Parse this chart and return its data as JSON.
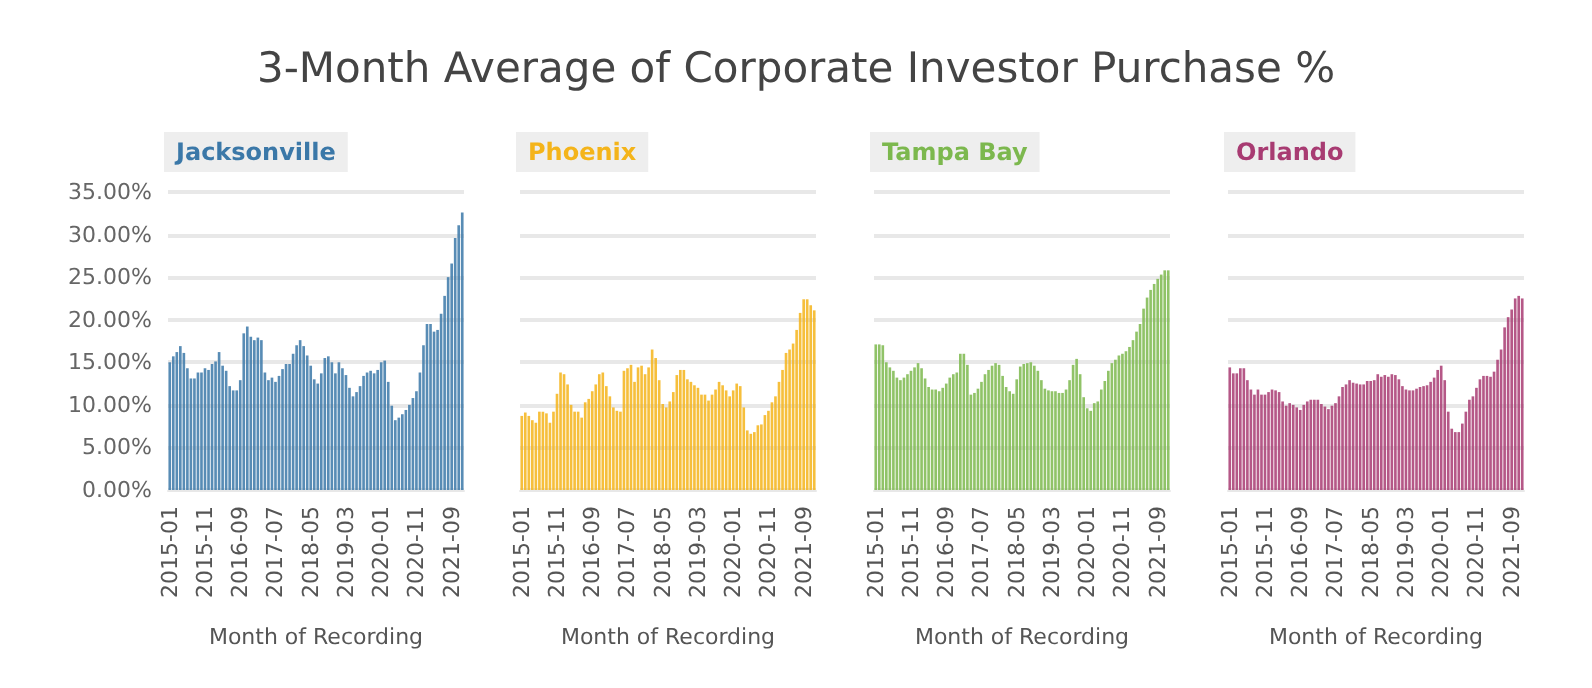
{
  "chart_data": [
    {
      "type": "bar",
      "title": "Jacksonville",
      "annotations": [
        "3-Month Average of Corporate Investor Purchase %"
      ],
      "xlabel": "Month of Recording",
      "categories": [
        "2015-01",
        null,
        null,
        null,
        null,
        null,
        null,
        null,
        null,
        null,
        "2015-11",
        null,
        null,
        null,
        null,
        null,
        null,
        null,
        null,
        null,
        "2016-09",
        null,
        null,
        null,
        null,
        null,
        null,
        null,
        null,
        null,
        "2017-07",
        null,
        null,
        null,
        null,
        null,
        null,
        null,
        null,
        null,
        "2018-05",
        null,
        null,
        null,
        null,
        null,
        null,
        null,
        null,
        null,
        "2019-03",
        null,
        null,
        null,
        null,
        null,
        null,
        null,
        null,
        null,
        "2020-01",
        null,
        null,
        null,
        null,
        null,
        null,
        null,
        null,
        null,
        "2020-11",
        null,
        null,
        null,
        null,
        null,
        null,
        null,
        null,
        null,
        "2021-09",
        null,
        null,
        null
      ],
      "series": [
        {
          "color": "#3b78a8",
          "values": [
            15.0,
            15.7,
            16.2,
            16.9,
            16.1,
            14.3,
            13.1,
            13.1,
            13.8,
            13.8,
            14.3,
            14.1,
            14.8,
            15.1,
            16.2,
            14.6,
            14.0,
            12.2,
            11.7,
            11.7,
            12.9,
            18.4,
            19.2,
            18.0,
            17.6,
            17.9,
            17.6,
            13.8,
            12.9,
            13.2,
            12.7,
            13.4,
            14.2,
            14.8,
            14.8,
            16.0,
            17.0,
            17.6,
            16.9,
            15.8,
            14.6,
            13.0,
            12.5,
            13.7,
            15.5,
            15.7,
            15.0,
            13.7,
            15.0,
            14.3,
            13.5,
            12.0,
            11.0,
            11.5,
            12.2,
            13.4,
            13.8,
            14.0,
            13.7,
            14.1,
            15.0,
            15.2,
            12.7,
            9.9,
            8.2,
            8.5,
            8.9,
            9.4,
            10.0,
            10.8,
            11.6,
            13.8,
            17.0,
            19.5,
            19.5,
            18.6,
            18.8,
            20.7,
            22.8,
            25.0,
            26.6,
            29.6,
            31.1,
            32.6
          ]
        }
      ],
      "ylim": [
        0,
        35
      ],
      "yticks": [
        {
          "value": 0,
          "label": "0.00%"
        },
        {
          "value": 5,
          "label": "5.00%"
        },
        {
          "value": 10,
          "label": "10.00%"
        },
        {
          "value": 15,
          "label": "15.00%"
        },
        {
          "value": 20,
          "label": "20.00%"
        },
        {
          "value": 25,
          "label": "25.00%"
        },
        {
          "value": 30,
          "label": "30.00%"
        },
        {
          "value": 35,
          "label": "35.00%"
        }
      ],
      "grid": "y"
    },
    {
      "type": "bar",
      "title": "Phoenix",
      "xlabel": "Month of Recording",
      "categories": [
        "2015-01",
        null,
        null,
        null,
        null,
        null,
        null,
        null,
        null,
        null,
        "2015-11",
        null,
        null,
        null,
        null,
        null,
        null,
        null,
        null,
        null,
        "2016-09",
        null,
        null,
        null,
        null,
        null,
        null,
        null,
        null,
        null,
        "2017-07",
        null,
        null,
        null,
        null,
        null,
        null,
        null,
        null,
        null,
        "2018-05",
        null,
        null,
        null,
        null,
        null,
        null,
        null,
        null,
        null,
        "2019-03",
        null,
        null,
        null,
        null,
        null,
        null,
        null,
        null,
        null,
        "2020-01",
        null,
        null,
        null,
        null,
        null,
        null,
        null,
        null,
        null,
        "2020-11",
        null,
        null,
        null,
        null,
        null,
        null,
        null,
        null,
        null,
        "2021-09",
        null,
        null,
        null
      ],
      "series": [
        {
          "color": "#f4b41a",
          "values": [
            8.7,
            9.1,
            8.7,
            8.2,
            7.9,
            9.2,
            9.2,
            9.0,
            7.9,
            9.2,
            11.3,
            13.8,
            13.6,
            12.4,
            10.0,
            9.2,
            9.2,
            8.5,
            10.3,
            10.7,
            11.6,
            12.4,
            13.6,
            13.8,
            12.2,
            11.0,
            9.7,
            9.3,
            9.2,
            14.0,
            14.3,
            14.7,
            12.7,
            14.4,
            14.6,
            13.6,
            14.4,
            16.5,
            15.5,
            12.9,
            10.1,
            9.7,
            10.4,
            11.5,
            13.5,
            14.1,
            14.1,
            13.0,
            12.7,
            12.3,
            12.0,
            11.2,
            11.2,
            10.5,
            11.2,
            11.8,
            12.7,
            12.3,
            11.7,
            11.0,
            11.7,
            12.5,
            12.2,
            9.7,
            7.0,
            6.6,
            6.8,
            7.6,
            7.7,
            8.8,
            9.3,
            10.3,
            11.0,
            12.7,
            14.1,
            16.1,
            16.5,
            17.2,
            18.8,
            20.8,
            22.4,
            22.4,
            21.7,
            21.1
          ]
        }
      ],
      "ylim": [
        0,
        35
      ],
      "yticks": [
        0,
        5,
        10,
        15,
        20,
        25,
        30,
        35
      ],
      "grid": "y",
      "tick_labels": "x"
    },
    {
      "type": "bar",
      "title": "Tampa Bay",
      "xlabel": "Month of Recording",
      "categories": [
        "2015-01",
        null,
        null,
        null,
        null,
        null,
        null,
        null,
        null,
        null,
        "2015-11",
        null,
        null,
        null,
        null,
        null,
        null,
        null,
        null,
        null,
        "2016-09",
        null,
        null,
        null,
        null,
        null,
        null,
        null,
        null,
        null,
        "2017-07",
        null,
        null,
        null,
        null,
        null,
        null,
        null,
        null,
        null,
        "2018-05",
        null,
        null,
        null,
        null,
        null,
        null,
        null,
        null,
        null,
        "2019-03",
        null,
        null,
        null,
        null,
        null,
        null,
        null,
        null,
        null,
        "2020-01",
        null,
        null,
        null,
        null,
        null,
        null,
        null,
        null,
        null,
        "2020-11",
        null,
        null,
        null,
        null,
        null,
        null,
        null,
        null,
        null,
        "2021-09",
        null,
        null,
        null
      ],
      "series": [
        {
          "color": "#7cb84e",
          "values": [
            17.1,
            17.1,
            17.0,
            15.0,
            14.4,
            14.0,
            13.2,
            12.9,
            13.2,
            13.6,
            14.0,
            14.4,
            14.9,
            14.3,
            13.1,
            12.1,
            11.8,
            11.8,
            11.6,
            12.0,
            12.5,
            13.2,
            13.6,
            13.8,
            16.0,
            16.0,
            14.7,
            11.2,
            11.4,
            11.9,
            12.7,
            13.6,
            14.1,
            14.6,
            14.9,
            14.7,
            13.4,
            12.1,
            11.6,
            11.3,
            13.0,
            14.5,
            14.8,
            14.9,
            15.0,
            14.6,
            14.0,
            12.9,
            11.9,
            11.7,
            11.6,
            11.6,
            11.4,
            11.4,
            11.8,
            12.9,
            14.7,
            15.4,
            13.6,
            10.9,
            9.6,
            9.3,
            10.2,
            10.4,
            11.8,
            12.8,
            14.0,
            14.9,
            15.3,
            15.8,
            16.0,
            16.3,
            16.8,
            17.6,
            18.6,
            19.5,
            21.3,
            22.6,
            23.5,
            24.2,
            24.8,
            25.3,
            25.8,
            25.8
          ]
        }
      ],
      "ylim": [
        0,
        35
      ],
      "yticks": [
        0,
        5,
        10,
        15,
        20,
        25,
        30,
        35
      ],
      "grid": "y",
      "tick_labels": "x"
    },
    {
      "type": "bar",
      "title": "Orlando",
      "xlabel": "Month of Recording",
      "categories": [
        "2015-01",
        null,
        null,
        null,
        null,
        null,
        null,
        null,
        null,
        null,
        "2015-11",
        null,
        null,
        null,
        null,
        null,
        null,
        null,
        null,
        null,
        "2016-09",
        null,
        null,
        null,
        null,
        null,
        null,
        null,
        null,
        null,
        "2017-07",
        null,
        null,
        null,
        null,
        null,
        null,
        null,
        null,
        null,
        "2018-05",
        null,
        null,
        null,
        null,
        null,
        null,
        null,
        null,
        null,
        "2019-03",
        null,
        null,
        null,
        null,
        null,
        null,
        null,
        null,
        null,
        "2020-01",
        null,
        null,
        null,
        null,
        null,
        null,
        null,
        null,
        null,
        "2020-11",
        null,
        null,
        null,
        null,
        null,
        null,
        null,
        null,
        null,
        "2021-09",
        null,
        null,
        null
      ],
      "series": [
        {
          "color": "#a83b72",
          "values": [
            14.4,
            13.7,
            13.7,
            14.3,
            14.3,
            12.9,
            11.8,
            11.2,
            11.8,
            11.2,
            11.2,
            11.5,
            11.8,
            11.7,
            11.5,
            10.4,
            9.9,
            10.2,
            10.0,
            9.7,
            9.4,
            10.0,
            10.4,
            10.6,
            10.6,
            10.6,
            10.1,
            9.8,
            9.5,
            9.9,
            10.2,
            11.0,
            12.1,
            12.4,
            12.9,
            12.6,
            12.5,
            12.4,
            12.4,
            12.8,
            12.8,
            12.9,
            13.6,
            13.3,
            13.5,
            13.3,
            13.6,
            13.5,
            13.0,
            12.2,
            11.8,
            11.7,
            11.7,
            11.9,
            12.1,
            12.2,
            12.3,
            12.7,
            13.2,
            14.1,
            14.6,
            12.9,
            9.2,
            7.2,
            6.8,
            6.8,
            7.8,
            9.2,
            10.6,
            11.0,
            12.0,
            13.0,
            13.4,
            13.4,
            13.3,
            13.9,
            15.3,
            16.5,
            19.1,
            20.3,
            21.2,
            22.5,
            22.8,
            22.5
          ]
        }
      ],
      "ylim": [
        0,
        35
      ],
      "yticks": [
        0,
        5,
        10,
        15,
        20,
        25,
        30,
        35
      ],
      "grid": "y",
      "tick_labels": "x"
    }
  ]
}
